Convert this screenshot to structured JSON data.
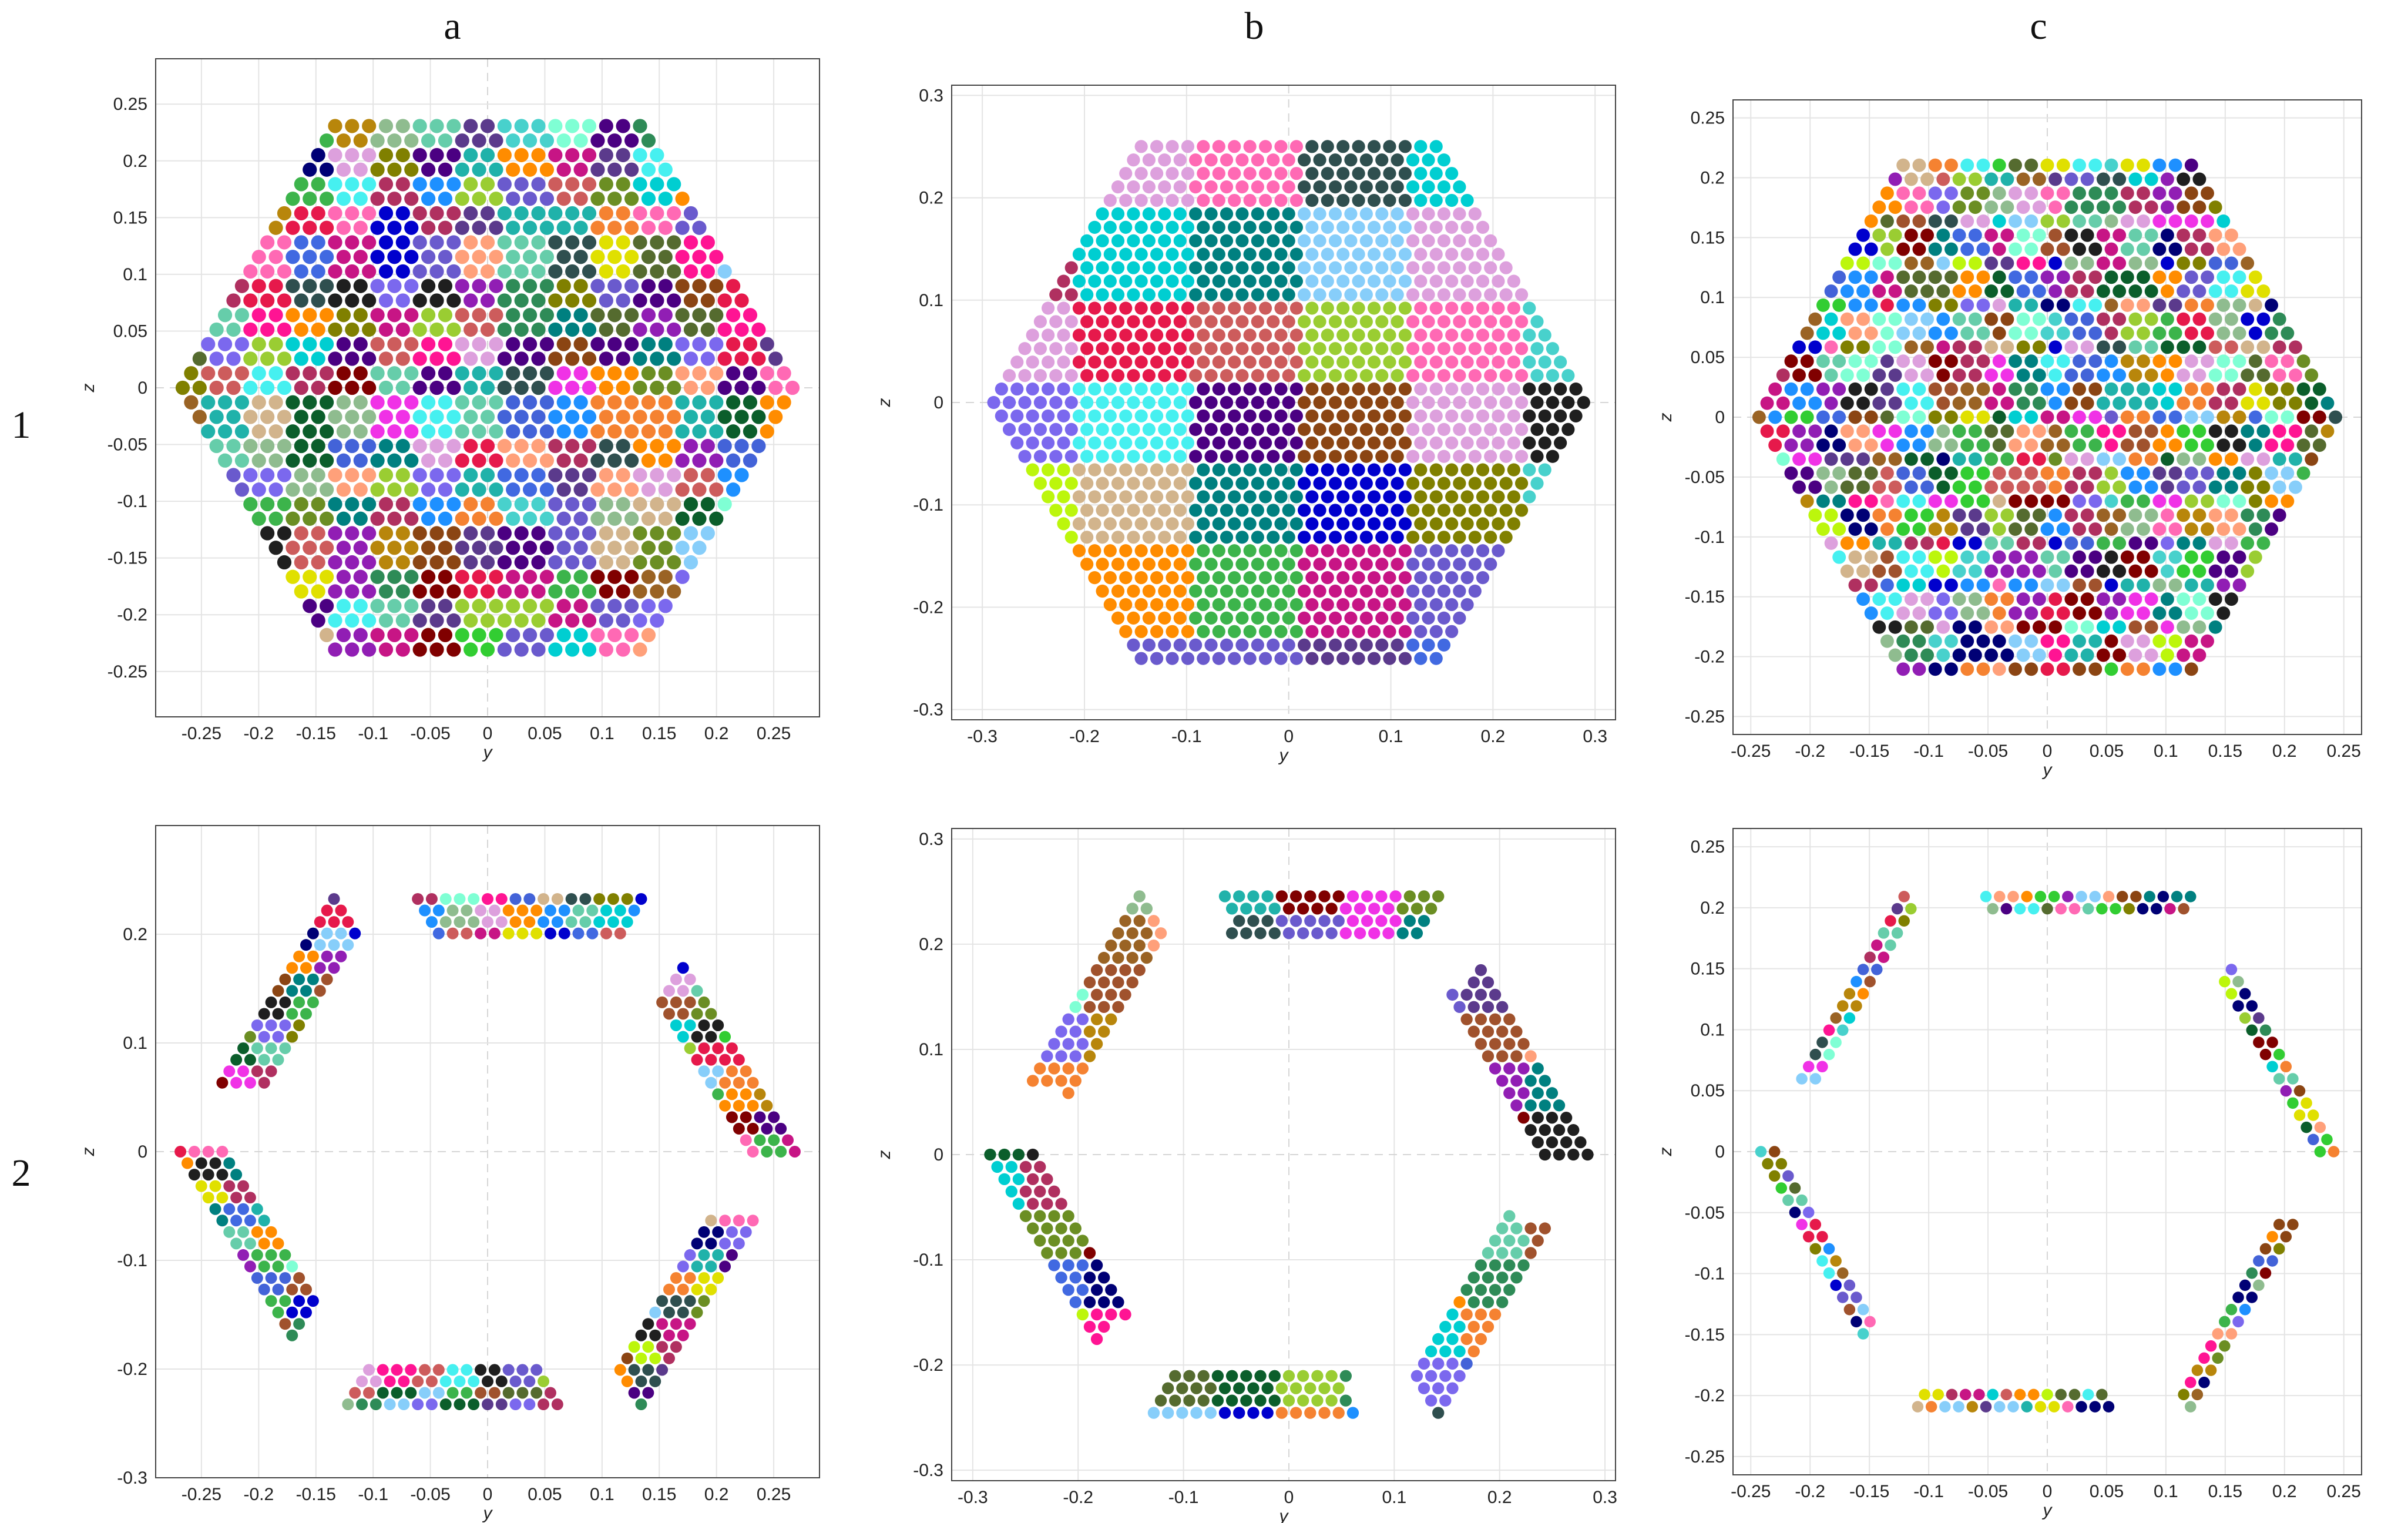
{
  "column_labels": [
    "a",
    "b",
    "c"
  ],
  "row_labels": [
    "1",
    "2"
  ],
  "chart_data": [
    {
      "id": "1a",
      "type": "scatter",
      "xlabel": "y",
      "ylabel": "z",
      "xlim": [
        -0.29,
        0.29
      ],
      "ylim": [
        -0.29,
        0.29
      ],
      "xticks": [
        -0.25,
        -0.2,
        -0.15,
        -0.1,
        -0.05,
        0,
        0.05,
        0.1,
        0.15,
        0.2,
        0.25
      ],
      "yticks": [
        -0.25,
        -0.2,
        -0.15,
        -0.1,
        -0.05,
        0,
        0.05,
        0.1,
        0.15,
        0.2,
        0.25
      ],
      "tick_labels_x": [
        "-0.25",
        "-0.2",
        "-0.15",
        "-0.1",
        "-0.05",
        "0",
        "0.05",
        "0.1",
        "0.15",
        "0.2",
        "0.25"
      ],
      "tick_labels_y": [
        "-0.25",
        "-0.2",
        "-0.15",
        "-0.1",
        "-0.05",
        "0",
        "0.05",
        "0.1",
        "0.15",
        "0.2",
        "0.25"
      ],
      "layout": "full",
      "radius": 0.27,
      "pitch": 0.0148,
      "cluster_cells": 1.6,
      "palette": "mixed"
    },
    {
      "id": "1b",
      "type": "scatter",
      "xlabel": "y",
      "ylabel": "z",
      "xlim": [
        -0.33,
        0.32
      ],
      "ylim": [
        -0.31,
        0.31
      ],
      "xticks": [
        -0.3,
        -0.2,
        -0.1,
        0,
        0.1,
        0.2,
        0.3
      ],
      "yticks": [
        -0.3,
        -0.2,
        -0.1,
        0,
        0.1,
        0.2,
        0.3
      ],
      "tick_labels_x": [
        "-0.3",
        "-0.2",
        "-0.1",
        "0",
        "0.1",
        "0.2",
        "0.3"
      ],
      "tick_labels_y": [
        "-0.3",
        "-0.2",
        "-0.1",
        "0",
        "0.1",
        "0.2",
        "0.3"
      ],
      "layout": "full",
      "radius": 0.29,
      "pitch": 0.0152,
      "cluster_cells": 4.5,
      "palette": "mixed"
    },
    {
      "id": "1c",
      "type": "scatter",
      "xlabel": "y",
      "ylabel": "z",
      "xlim": [
        -0.265,
        0.265
      ],
      "ylim": [
        -0.265,
        0.265
      ],
      "xticks": [
        -0.25,
        -0.2,
        -0.15,
        -0.1,
        -0.05,
        0,
        0.05,
        0.1,
        0.15,
        0.2,
        0.25
      ],
      "yticks": [
        -0.25,
        -0.2,
        -0.15,
        -0.1,
        -0.05,
        0,
        0.05,
        0.1,
        0.15,
        0.2,
        0.25
      ],
      "tick_labels_x": [
        "-0.25",
        "-0.2",
        "-0.15",
        "-0.1",
        "-0.05",
        "0",
        "0.05",
        "0.1",
        "0.15",
        "0.2",
        "0.25"
      ],
      "tick_labels_y": [
        "-0.25",
        "-0.2",
        "-0.15",
        "-0.1",
        "-0.05",
        "0",
        "0.05",
        "0.1",
        "0.15",
        "0.2",
        "0.25"
      ],
      "layout": "full",
      "radius": 0.245,
      "pitch": 0.0135,
      "cluster_cells": 1.1,
      "palette": "mixed"
    },
    {
      "id": "2a",
      "type": "scatter",
      "xlabel": "y",
      "ylabel": "z",
      "xlim": [
        -0.29,
        0.29
      ],
      "ylim": [
        -0.3,
        0.3
      ],
      "xticks": [
        -0.25,
        -0.2,
        -0.15,
        -0.1,
        -0.05,
        0,
        0.05,
        0.1,
        0.15,
        0.2,
        0.25
      ],
      "yticks": [
        -0.3,
        -0.2,
        -0.1,
        0,
        0.1,
        0.2
      ],
      "tick_labels_x": [
        "-0.25",
        "-0.2",
        "-0.15",
        "-0.1",
        "-0.05",
        "0",
        "0.05",
        "0.1",
        "0.15",
        "0.2",
        "0.25"
      ],
      "tick_labels_y": [
        "-0.3",
        "-0.2",
        "-0.1",
        "0",
        "0.1",
        "0.2"
      ],
      "layout": "ring",
      "radius": 0.27,
      "inner": 0.22,
      "pitch": 0.0122,
      "cluster_cells": 1.4,
      "palette": "mixed"
    },
    {
      "id": "2b",
      "type": "scatter",
      "xlabel": "y",
      "ylabel": "z",
      "xlim": [
        -0.32,
        0.31
      ],
      "ylim": [
        -0.31,
        0.31
      ],
      "xticks": [
        -0.3,
        -0.2,
        -0.1,
        0,
        0.1,
        0.2,
        0.3
      ],
      "yticks": [
        -0.3,
        -0.2,
        -0.1,
        0,
        0.1,
        0.2,
        0.3
      ],
      "tick_labels_x": [
        "-0.3",
        "-0.2",
        "-0.1",
        "0",
        "0.1",
        "0.2",
        "0.3"
      ],
      "tick_labels_y": [
        "-0.3",
        "-0.2",
        "-0.1",
        "0",
        "0.1",
        "0.2",
        "0.3"
      ],
      "layout": "ring",
      "radius": 0.295,
      "inner": 0.235,
      "pitch": 0.0135,
      "cluster_cells": 2.8,
      "palette": "mixed"
    },
    {
      "id": "2c",
      "type": "scatter",
      "xlabel": "y",
      "ylabel": "z",
      "xlim": [
        -0.265,
        0.265
      ],
      "ylim": [
        -0.265,
        0.265
      ],
      "xticks": [
        -0.25,
        -0.2,
        -0.15,
        -0.1,
        -0.05,
        0,
        0.05,
        0.1,
        0.15,
        0.2,
        0.25
      ],
      "yticks": [
        -0.25,
        -0.2,
        -0.15,
        -0.1,
        -0.05,
        0,
        0.05,
        0.1,
        0.15,
        0.2,
        0.25
      ],
      "tick_labels_x": [
        "-0.25",
        "-0.2",
        "-0.15",
        "-0.1",
        "-0.05",
        "0",
        "0.05",
        "0.1",
        "0.15",
        "0.2",
        "0.25"
      ],
      "tick_labels_y": [
        "-0.25",
        "-0.2",
        "-0.15",
        "-0.1",
        "-0.05",
        "0",
        "0.05",
        "0.1",
        "0.15",
        "0.2",
        "0.25"
      ],
      "layout": "ring",
      "radius": 0.245,
      "inner": 0.22,
      "pitch": 0.0115,
      "cluster_cells": 0.9,
      "palette": "mixed"
    }
  ],
  "palette_colors": [
    "#e6194b",
    "#3cb44b",
    "#4363d8",
    "#f58231",
    "#911eb4",
    "#46f0f0",
    "#f032e6",
    "#bcf60c",
    "#008080",
    "#9a6324",
    "#800000",
    "#808000",
    "#000075",
    "#1f1f1f",
    "#5b3a8c",
    "#2e8b57",
    "#ff69b4",
    "#1e90ff",
    "#7fffd4",
    "#b8860b",
    "#6a5acd",
    "#8b4513",
    "#20b2aa",
    "#ff8c00",
    "#9acd32",
    "#c71585",
    "#4169e1",
    "#556b2f",
    "#cd5c5c",
    "#48d1cc",
    "#dda0dd",
    "#0b5e2b",
    "#ff1493",
    "#00ced1",
    "#8fbc8f",
    "#a0522d",
    "#7b68ee",
    "#32cd32",
    "#d2b48c",
    "#0000cd",
    "#b03060",
    "#66cdaa",
    "#ffa07a",
    "#6b8e23",
    "#87cefa",
    "#e0e000",
    "#4b0082",
    "#2f4f4f"
  ]
}
